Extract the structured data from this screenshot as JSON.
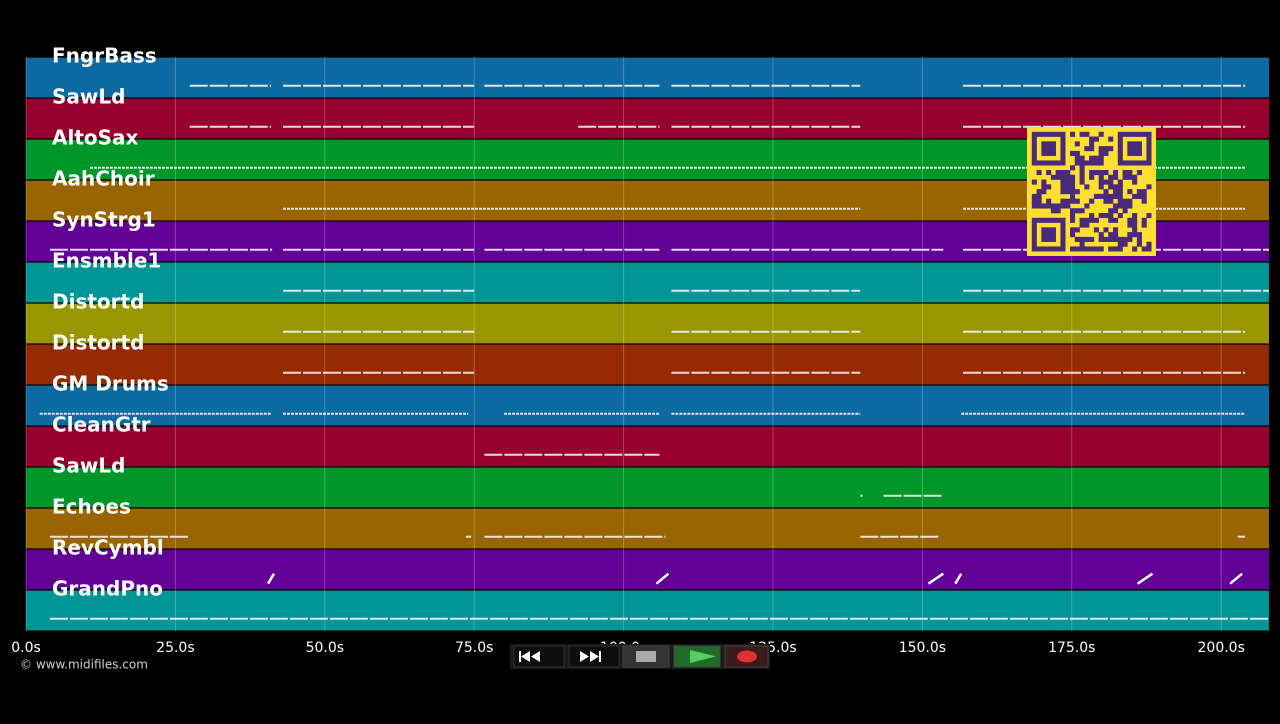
{
  "tracks": [
    {
      "name": "FngrBass",
      "color": "#0a6aa1",
      "notes": [
        [
          27.4,
          41
        ],
        [
          43,
          75
        ],
        [
          76.7,
          106
        ],
        [
          108,
          139.6
        ],
        [
          156.8,
          204
        ]
      ]
    },
    {
      "name": "SawLd",
      "color": "#96002f",
      "notes": [
        [
          27.4,
          41
        ],
        [
          43,
          75
        ],
        [
          92.4,
          106
        ],
        [
          108,
          139.6
        ],
        [
          156.8,
          204
        ]
      ]
    },
    {
      "name": "AltoSax",
      "color": "#00962a",
      "notes": [
        [
          10.7,
          204
        ]
      ]
    },
    {
      "name": "AahChoir",
      "color": "#9a6400",
      "notes": [
        [
          43,
          139.6
        ],
        [
          156.8,
          204
        ]
      ]
    },
    {
      "name": "SynStrg1",
      "color": "#620096",
      "notes": [
        [
          4,
          41.2
        ],
        [
          43,
          75
        ],
        [
          76.7,
          106
        ],
        [
          108,
          153.5
        ],
        [
          156.8,
          208
        ]
      ]
    },
    {
      "name": "Ensmble1",
      "color": "#009696",
      "notes": [
        [
          43,
          75
        ],
        [
          108,
          139.6
        ],
        [
          156.8,
          208
        ]
      ]
    },
    {
      "name": "Distortd",
      "color": "#9a9600",
      "notes": [
        [
          43,
          75
        ],
        [
          108,
          139.6
        ],
        [
          156.8,
          204
        ]
      ]
    },
    {
      "name": "Distortd",
      "color": "#962a00",
      "notes": [
        [
          43,
          75
        ],
        [
          108,
          139.6
        ],
        [
          156.8,
          204
        ]
      ]
    },
    {
      "name": "GM Drums",
      "color": "#0a6aa1",
      "notes": [
        [
          2.3,
          41
        ],
        [
          43,
          74
        ],
        [
          80,
          106
        ],
        [
          108,
          139.6
        ],
        [
          156.5,
          204
        ]
      ]
    },
    {
      "name": "CleanGtr",
      "color": "#96002f",
      "notes": [
        [
          76.7,
          106
        ]
      ]
    },
    {
      "name": "SawLd",
      "color": "#00962a",
      "notes": [
        [
          139.6,
          140
        ],
        [
          143.5,
          153.5
        ]
      ]
    },
    {
      "name": "Echoes",
      "color": "#9a6400",
      "notes": [
        [
          4,
          27.4
        ],
        [
          73.6,
          74.5
        ],
        [
          76.7,
          107
        ],
        [
          139.6,
          153
        ],
        [
          202.8,
          204
        ]
      ]
    },
    {
      "name": "RevCymbl",
      "color": "#620096",
      "notes": [
        [
          40.5,
          41.5
        ],
        [
          105.5,
          107.5
        ],
        [
          151,
          153.5
        ],
        [
          155.5,
          156.5
        ],
        [
          186,
          188.5
        ],
        [
          201.5,
          203.5
        ]
      ]
    },
    {
      "name": "GrandPno",
      "color": "#009696",
      "notes": [
        [
          4,
          208
        ]
      ]
    }
  ],
  "time_axis": {
    "range": [
      0,
      208
    ],
    "ticks": [
      {
        "value": 0,
        "label": "0.0s"
      },
      {
        "value": 25,
        "label": "25.0s"
      },
      {
        "value": 50,
        "label": "50.0s"
      },
      {
        "value": 75,
        "label": "75.0s"
      },
      {
        "value": 100,
        "label": "100.0s"
      },
      {
        "value": 125,
        "label": "125.0s"
      },
      {
        "value": 150,
        "label": "150.0s"
      },
      {
        "value": 175,
        "label": "175.0s"
      },
      {
        "value": 200,
        "label": "200.0s"
      }
    ]
  },
  "watermark": "© www.midifiles.com"
}
